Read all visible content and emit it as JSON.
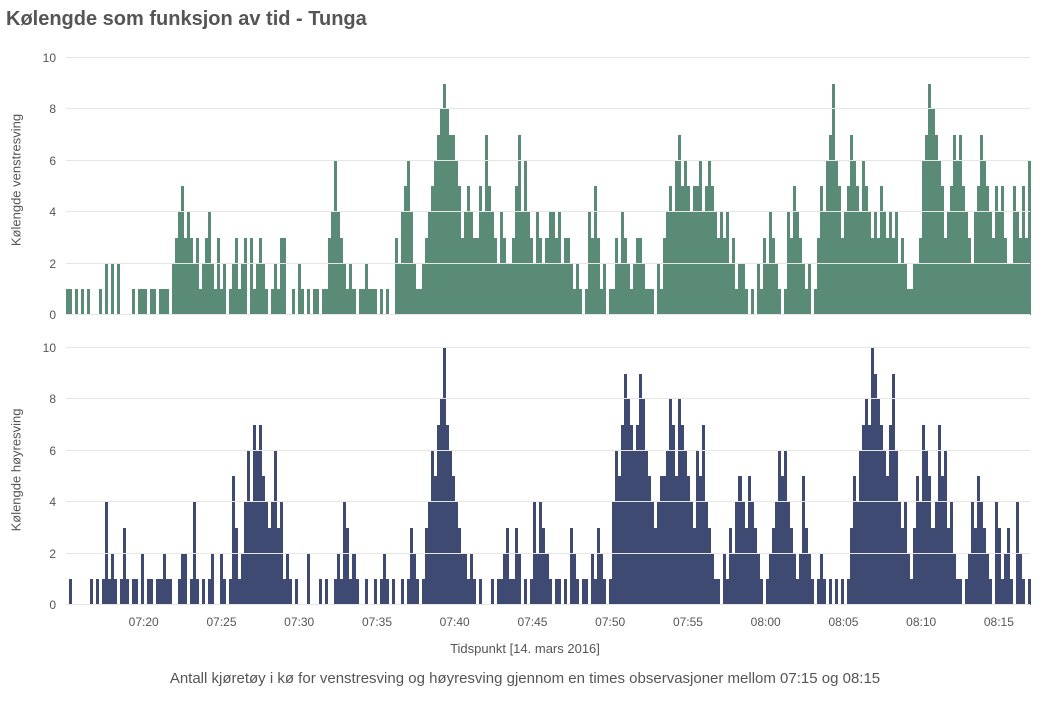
{
  "title": "Kølengde som funksjon av tid - Tunga",
  "xlabel": "Tidspunkt [14. mars 2016]",
  "caption": "Antall kjøretøy i kø for venstresving og høyresving gjennom en times observasjoner mellom 07:15 og 08:15",
  "background_color": "#ffffff",
  "grid_color": "#e6e6e6",
  "text_color": "#555555",
  "title_fontsize": 20,
  "label_fontsize": 13,
  "tick_fontsize": 12,
  "caption_fontsize": 15,
  "x_ticks": [
    "07:20",
    "07:25",
    "07:30",
    "07:35",
    "07:40",
    "07:45",
    "07:50",
    "07:55",
    "08:00",
    "08:05",
    "08:10",
    "08:15"
  ],
  "x_tick_positions_pct": [
    8.06,
    16.13,
    24.19,
    32.26,
    40.32,
    48.39,
    56.45,
    64.52,
    72.58,
    80.65,
    88.71,
    96.77
  ],
  "y_ticks": [
    0,
    2,
    4,
    6,
    8,
    10
  ],
  "ylim": [
    0,
    10.5
  ],
  "panels": [
    {
      "id": "top",
      "ylabel": "Kølengde venstresving",
      "type": "bar",
      "bar_color": "#5a8b76",
      "values": [
        1,
        1,
        0,
        1,
        0,
        1,
        0,
        1,
        0,
        0,
        0,
        1,
        0,
        2,
        0,
        2,
        0,
        2,
        0,
        0,
        0,
        0,
        1,
        0,
        1,
        1,
        1,
        0,
        1,
        1,
        0,
        1,
        1,
        1,
        0,
        2,
        3,
        4,
        5,
        3,
        4,
        3,
        2,
        3,
        1,
        2,
        3,
        4,
        2,
        1,
        3,
        1,
        2,
        0,
        1,
        2,
        3,
        1,
        2,
        3,
        0,
        3,
        1,
        2,
        3,
        2,
        1,
        0,
        1,
        2,
        1,
        3,
        3,
        0,
        0,
        1,
        0,
        2,
        1,
        0,
        1,
        0,
        1,
        1,
        0,
        1,
        1,
        3,
        4,
        6,
        4,
        3,
        2,
        1,
        2,
        1,
        0,
        1,
        1,
        2,
        1,
        1,
        1,
        0,
        1,
        0,
        1,
        0,
        0,
        3,
        2,
        4,
        5,
        6,
        4,
        2,
        1,
        1,
        2,
        3,
        4,
        5,
        6,
        7,
        8,
        9,
        8,
        7,
        7,
        6,
        5,
        3,
        4,
        5,
        4,
        3,
        3,
        5,
        4,
        7,
        5,
        4,
        3,
        2,
        4,
        3,
        2,
        2,
        3,
        5,
        7,
        4,
        6,
        4,
        3,
        2,
        4,
        3,
        2,
        3,
        4,
        4,
        3,
        4,
        2,
        3,
        3,
        2,
        1,
        2,
        1,
        0,
        1,
        4,
        3,
        5,
        3,
        1,
        2,
        0,
        1,
        1,
        3,
        2,
        4,
        3,
        2,
        1,
        2,
        3,
        3,
        2,
        1,
        1,
        1,
        0,
        2,
        1,
        3,
        4,
        5,
        4,
        6,
        7,
        5,
        6,
        5,
        4,
        5,
        5,
        6,
        4,
        5,
        6,
        5,
        4,
        3,
        4,
        3,
        4,
        2,
        3,
        1,
        2,
        2,
        1,
        0,
        1,
        0,
        2,
        1,
        3,
        2,
        4,
        3,
        2,
        1,
        0,
        1,
        4,
        3,
        5,
        4,
        3,
        2,
        1,
        2,
        0,
        1,
        3,
        5,
        4,
        6,
        7,
        9,
        6,
        5,
        3,
        4,
        5,
        7,
        6,
        5,
        4,
        6,
        5,
        4,
        3,
        4,
        3,
        5,
        4,
        3,
        4,
        3,
        4,
        2,
        3,
        2,
        1,
        1,
        2,
        2,
        3,
        6,
        7,
        9,
        8,
        7,
        6,
        5,
        3,
        4,
        5,
        7,
        6,
        7,
        5,
        4,
        3,
        2,
        4,
        5,
        7,
        6,
        5,
        4,
        3,
        5,
        4,
        5,
        3,
        2,
        2,
        5,
        4,
        3,
        5,
        3,
        6
      ]
    },
    {
      "id": "bottom",
      "ylabel": "Kølengde høyresving",
      "type": "bar",
      "bar_color": "#3e4a72",
      "values": [
        0,
        1,
        0,
        0,
        0,
        0,
        0,
        0,
        1,
        0,
        1,
        0,
        1,
        4,
        1,
        2,
        1,
        0,
        1,
        3,
        1,
        0,
        1,
        1,
        0,
        2,
        0,
        1,
        1,
        0,
        1,
        1,
        2,
        1,
        1,
        0,
        0,
        1,
        2,
        2,
        0,
        1,
        4,
        1,
        0,
        1,
        0,
        1,
        2,
        0,
        0,
        2,
        1,
        0,
        1,
        5,
        3,
        1,
        2,
        4,
        6,
        4,
        7,
        6,
        7,
        5,
        4,
        3,
        4,
        6,
        3,
        4,
        1,
        2,
        1,
        0,
        1,
        0,
        0,
        0,
        2,
        0,
        0,
        0,
        1,
        0,
        1,
        0,
        0,
        1,
        2,
        1,
        4,
        3,
        1,
        2,
        1,
        0,
        0,
        1,
        0,
        0,
        1,
        0,
        1,
        2,
        1,
        0,
        1,
        0,
        0,
        1,
        0,
        1,
        3,
        2,
        1,
        0,
        1,
        3,
        4,
        6,
        5,
        7,
        8,
        10,
        7,
        6,
        5,
        4,
        3,
        2,
        2,
        1,
        2,
        1,
        0,
        1,
        0,
        0,
        0,
        1,
        0,
        1,
        1,
        2,
        3,
        1,
        1,
        3,
        2,
        0,
        1,
        0,
        1,
        4,
        2,
        4,
        3,
        2,
        1,
        0,
        1,
        1,
        0,
        1,
        0,
        3,
        2,
        1,
        0,
        1,
        1,
        0,
        2,
        1,
        3,
        2,
        1,
        0,
        1,
        4,
        6,
        5,
        7,
        9,
        8,
        7,
        6,
        7,
        9,
        8,
        6,
        5,
        4,
        3,
        4,
        5,
        5,
        6,
        8,
        7,
        5,
        8,
        7,
        6,
        5,
        4,
        3,
        6,
        5,
        7,
        4,
        3,
        2,
        1,
        1,
        0,
        2,
        1,
        3,
        2,
        4,
        5,
        4,
        3,
        5,
        4,
        3,
        2,
        1,
        0,
        1,
        2,
        3,
        4,
        6,
        5,
        6,
        4,
        3,
        2,
        1,
        2,
        5,
        3,
        2,
        1,
        0,
        1,
        2,
        1,
        0,
        1,
        0,
        1,
        0,
        1,
        0,
        1,
        3,
        5,
        4,
        6,
        7,
        8,
        7,
        10,
        9,
        8,
        7,
        6,
        5,
        7,
        9,
        6,
        4,
        3,
        4,
        2,
        1,
        3,
        5,
        4,
        7,
        6,
        5,
        3,
        4,
        7,
        5,
        6,
        3,
        4,
        2,
        1,
        1,
        0,
        1,
        2,
        4,
        3,
        5,
        4,
        3,
        2,
        1,
        0,
        4,
        3,
        1,
        2,
        3,
        1,
        0,
        4,
        2,
        1,
        0,
        1
      ]
    }
  ]
}
